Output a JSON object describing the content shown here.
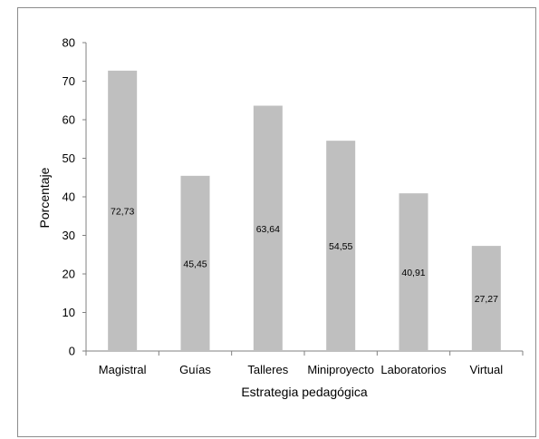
{
  "chart_data": {
    "type": "bar",
    "categories": [
      "Magistral",
      "Guías",
      "Talleres",
      "Miniproyecto",
      "Laboratorios",
      "Virtual"
    ],
    "values": [
      72.73,
      45.45,
      63.64,
      54.55,
      40.91,
      27.27
    ],
    "data_labels": [
      "72,73",
      "45,45",
      "63,64",
      "54,55",
      "40,91",
      "27,27"
    ],
    "title": "",
    "xlabel": "Estrategia pedagógica",
    "ylabel": "Porcentaje",
    "ylim": [
      0,
      80
    ],
    "yticks": [
      "0",
      "10",
      "20",
      "30",
      "40",
      "50",
      "60",
      "70",
      "80"
    ],
    "grid": false,
    "legend": "none",
    "bar_color": "#bfbfbf",
    "axis_color": "#808080"
  }
}
